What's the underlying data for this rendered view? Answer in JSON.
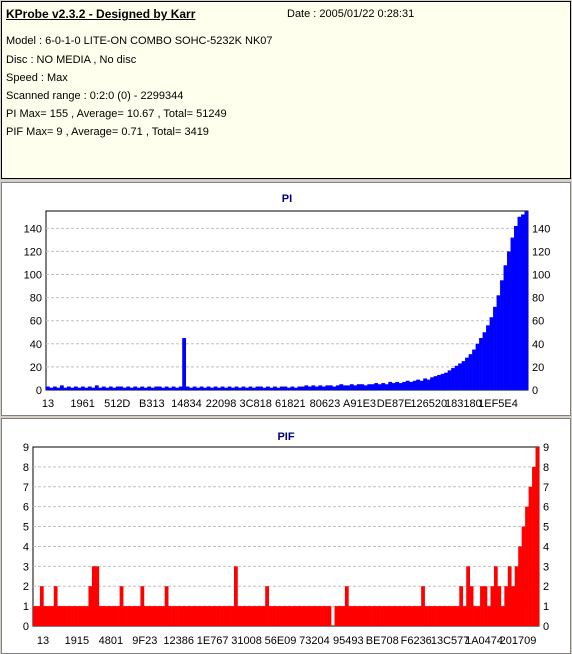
{
  "info": {
    "title": "KProbe v2.3.2 - Designed by Karr",
    "date": "Date : 2005/01/22 0:28:31",
    "lines": [
      "Model : 6-0-1-0 LITE-ON COMBO SOHC-5232K NK07",
      "Disc : NO MEDIA , No disc",
      "Speed : Max",
      "Scanned range : 0:2:0 (0) - 2299344",
      "PI Max= 155 , Average= 10.67 , Total= 51249",
      "PIF Max= 9 , Average= 0.71 , Total= 3419"
    ]
  },
  "colors": {
    "info_bg": "#ffffee",
    "panel_bg": "#ffffff",
    "grid": "#c0c0c0",
    "pi_bar": "#0000ff",
    "pif_bar": "#ff0000",
    "title": "#000080"
  },
  "chart_data": [
    {
      "type": "bar",
      "title": "PI",
      "ylim": [
        0,
        155
      ],
      "yticks": [
        0,
        20,
        40,
        60,
        80,
        100,
        120,
        140
      ],
      "grid": true,
      "xtick_labels": [
        "13",
        "1961",
        "512D",
        "B313",
        "14834",
        "22098",
        "3C818",
        "61821",
        "80623",
        "A91E3",
        "DE87E",
        "126520",
        "183180",
        "1EF5E4"
      ],
      "values": [
        3,
        2,
        3,
        2,
        4,
        2,
        3,
        2,
        3,
        2,
        3,
        2,
        3,
        2,
        4,
        2,
        3,
        2,
        3,
        2,
        3,
        3,
        2,
        3,
        2,
        3,
        2,
        3,
        2,
        3,
        2,
        3,
        3,
        2,
        3,
        2,
        3,
        2,
        3,
        45,
        3,
        2,
        3,
        2,
        3,
        2,
        3,
        2,
        3,
        2,
        3,
        2,
        3,
        2,
        3,
        2,
        3,
        2,
        3,
        2,
        3,
        3,
        2,
        3,
        2,
        3,
        2,
        3,
        3,
        2,
        3,
        2,
        3,
        3,
        4,
        3,
        4,
        3,
        4,
        3,
        4,
        4,
        3,
        4,
        5,
        4,
        4,
        5,
        4,
        5,
        5,
        4,
        5,
        5,
        6,
        5,
        6,
        5,
        7,
        6,
        7,
        6,
        7,
        8,
        7,
        8,
        9,
        8,
        10,
        9,
        11,
        12,
        13,
        14,
        15,
        17,
        19,
        21,
        23,
        25,
        28,
        31,
        35,
        40,
        45,
        50,
        56,
        63,
        72,
        82,
        95,
        108,
        120,
        132,
        142,
        150,
        152,
        155
      ]
    },
    {
      "type": "bar",
      "title": "PIF",
      "ylim": [
        0,
        9
      ],
      "yticks": [
        0,
        1,
        2,
        3,
        4,
        5,
        6,
        7,
        8,
        9
      ],
      "grid": true,
      "xtick_labels": [
        "13",
        "1915",
        "4801",
        "9F23",
        "12386",
        "1E767",
        "31008",
        "56E09",
        "73204",
        "95493",
        "BE708",
        "F6236",
        "13C577",
        "1A0474",
        "201709"
      ],
      "values": [
        1,
        1,
        2,
        1,
        1,
        1,
        2,
        1,
        1,
        1,
        1,
        1,
        1,
        1,
        1,
        1,
        2,
        3,
        3,
        1,
        1,
        1,
        1,
        1,
        1,
        2,
        1,
        1,
        1,
        1,
        1,
        2,
        1,
        1,
        1,
        1,
        1,
        1,
        2,
        1,
        1,
        1,
        1,
        1,
        1,
        1,
        1,
        1,
        1,
        1,
        1,
        1,
        1,
        1,
        1,
        1,
        1,
        1,
        3,
        1,
        1,
        1,
        1,
        1,
        1,
        1,
        1,
        2,
        1,
        1,
        1,
        1,
        1,
        1,
        1,
        1,
        1,
        1,
        1,
        1,
        1,
        1,
        1,
        1,
        1,
        1,
        0,
        1,
        1,
        1,
        2,
        1,
        1,
        1,
        1,
        1,
        1,
        1,
        1,
        1,
        1,
        1,
        1,
        1,
        1,
        1,
        1,
        1,
        1,
        1,
        1,
        1,
        2,
        1,
        1,
        1,
        1,
        1,
        1,
        1,
        1,
        1,
        1,
        2,
        1,
        3,
        2,
        1,
        1,
        2,
        2,
        1,
        2,
        3,
        2,
        1,
        2,
        3,
        2,
        3,
        4,
        5,
        6,
        7,
        8,
        9
      ]
    }
  ]
}
